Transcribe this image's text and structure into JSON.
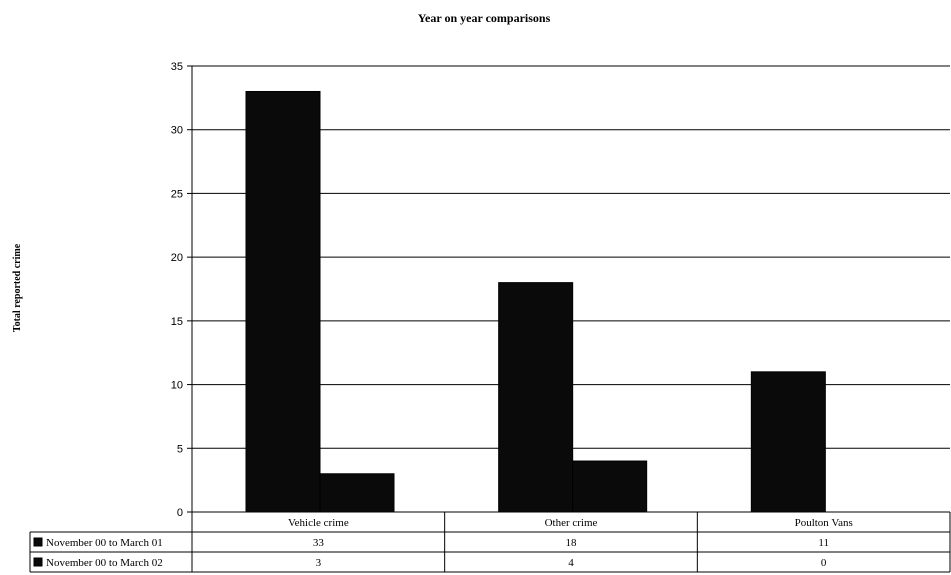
{
  "chart_data": {
    "type": "bar",
    "title": "Year on year comparisons",
    "xlabel": "",
    "ylabel": "Total reported crime",
    "categories": [
      "Vehicle crime",
      "Other crime",
      "Poulton Vans"
    ],
    "series": [
      {
        "name": "November 00 to March 01",
        "values": [
          33,
          18,
          11
        ]
      },
      {
        "name": "November 00 to March 02",
        "values": [
          3,
          4,
          0
        ]
      }
    ],
    "ylim": [
      0,
      35
    ],
    "yticks": [
      0,
      5,
      10,
      15,
      20,
      25,
      30,
      35
    ],
    "grid": true,
    "legend": "data-table-below",
    "colors": {
      "series": [
        "#0a0a0a",
        "#0a0a0a"
      ],
      "grid": "#000000",
      "background": "#ffffff"
    }
  }
}
